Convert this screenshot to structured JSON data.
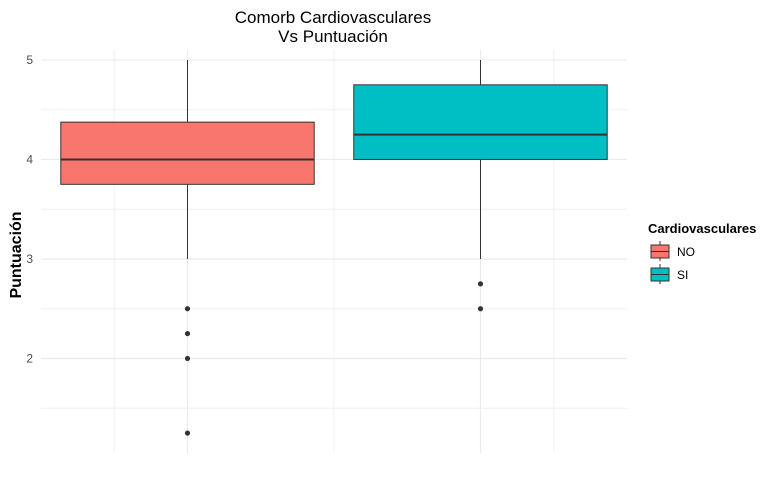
{
  "chart_data": {
    "type": "box",
    "title": "Comorb Cardiovasculares",
    "subtitle": "Vs Puntuación",
    "xlabel": "",
    "ylabel": "Puntuación",
    "ylim": [
      1.05,
      5.1
    ],
    "yticks": [
      "2",
      "3",
      "4",
      "5"
    ],
    "grid": true,
    "legend_position": "right",
    "legend_title": "Cardiovasculares",
    "groups": [
      {
        "name": "NO",
        "color": "#F8766D",
        "q1": 3.75,
        "median": 4.0,
        "q3": 4.375,
        "whisker_low": 3.0,
        "whisker_high": 5.0,
        "outliers": [
          2.5,
          2.25,
          2.0,
          1.25
        ]
      },
      {
        "name": "SI",
        "color": "#00BFC4",
        "q1": 4.0,
        "median": 4.25,
        "q3": 4.75,
        "whisker_low": 3.0,
        "whisker_high": 5.0,
        "outliers": [
          2.75,
          2.5
        ]
      }
    ]
  }
}
